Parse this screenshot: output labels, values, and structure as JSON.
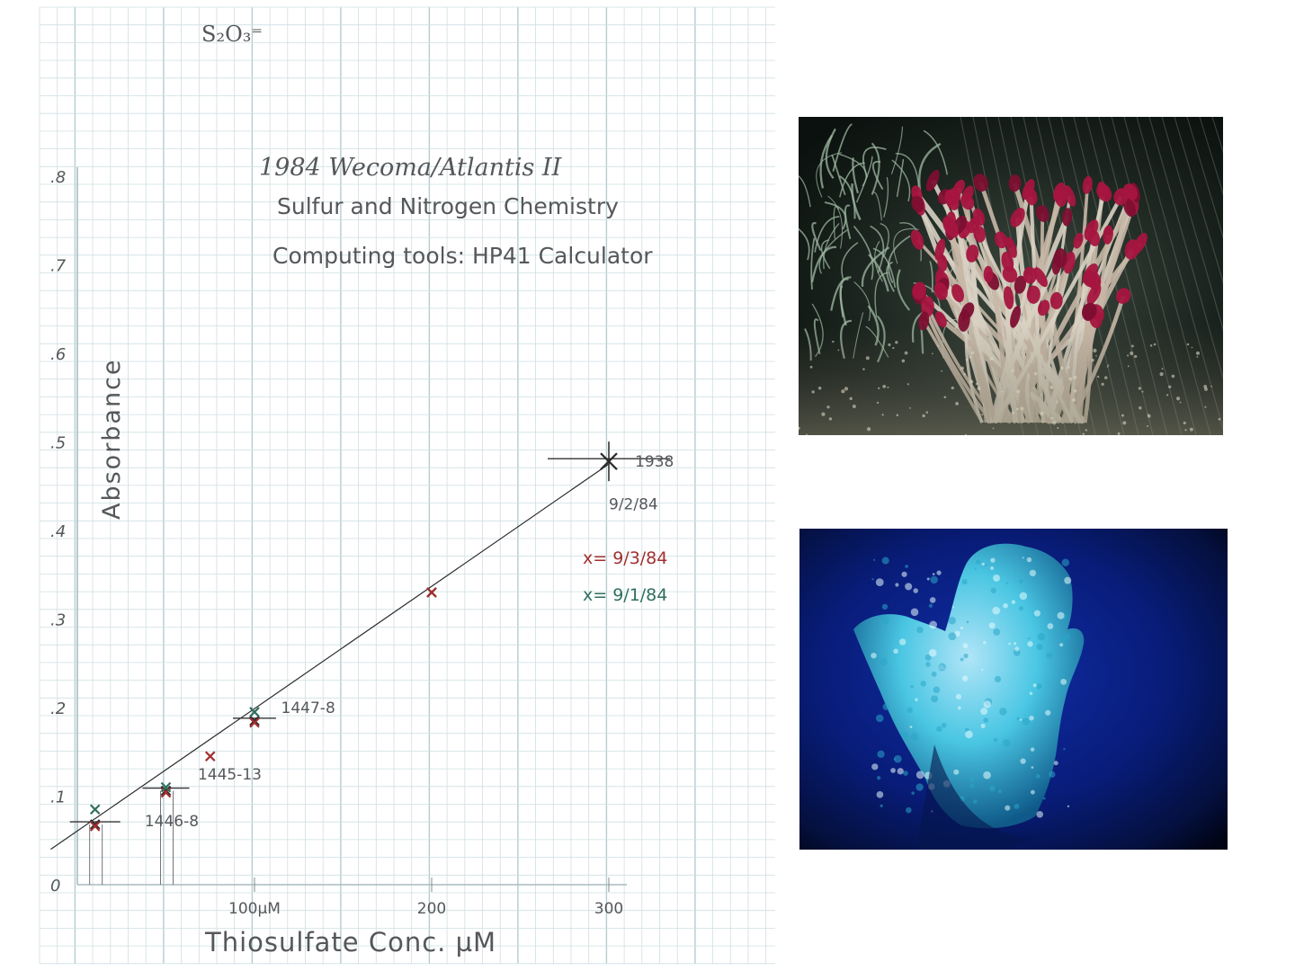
{
  "chart_data": {
    "type": "scatter",
    "header_formula": "S₂O₃⁼",
    "title_lines": [
      "1984 Wecoma/Atlantis II",
      "Sulfur and Nitrogen Chemistry",
      "Computing tools: HP41 Calculator"
    ],
    "ylabel": "Absorbance",
    "xlabel": "Thiosulfate Conc. µM",
    "ylim": [
      0,
      0.8
    ],
    "xlim": [
      0,
      300
    ],
    "yticks": [
      {
        "value": 0,
        "label": "0"
      },
      {
        "value": 0.1,
        "label": ".1"
      },
      {
        "value": 0.2,
        "label": ".2"
      },
      {
        "value": 0.3,
        "label": ".3"
      },
      {
        "value": 0.4,
        "label": ".4"
      },
      {
        "value": 0.5,
        "label": ".5"
      },
      {
        "value": 0.6,
        "label": ".6"
      },
      {
        "value": 0.7,
        "label": ".7"
      },
      {
        "value": 0.8,
        "label": ".8"
      }
    ],
    "xticks": [
      {
        "value": 100,
        "label": "100µM"
      },
      {
        "value": 200,
        "label": "200"
      },
      {
        "value": 300,
        "label": "300"
      }
    ],
    "fit_line": {
      "x": [
        -15,
        300
      ],
      "y": [
        0.04,
        0.475
      ]
    },
    "series": [
      {
        "name": "9/2/84",
        "color": "#2a2a2a",
        "points": [
          {
            "x": 10,
            "y": 0.068
          },
          {
            "x": 50,
            "y": 0.106
          },
          {
            "x": 100,
            "y": 0.185
          },
          {
            "x": 200,
            "y": 0.33
          },
          {
            "x": 300,
            "y": 0.478
          }
        ]
      },
      {
        "name": "9/3/84",
        "color": "#a23030",
        "points": [
          {
            "x": 10,
            "y": 0.066
          },
          {
            "x": 50,
            "y": 0.104
          },
          {
            "x": 75,
            "y": 0.145
          },
          {
            "x": 100,
            "y": 0.183
          },
          {
            "x": 200,
            "y": 0.33
          }
        ]
      },
      {
        "name": "9/1/84",
        "color": "#2f6f5e",
        "points": [
          {
            "x": 10,
            "y": 0.085
          },
          {
            "x": 50,
            "y": 0.11
          },
          {
            "x": 100,
            "y": 0.195
          }
        ]
      }
    ],
    "legend": [
      {
        "marker": "x",
        "label": "9/3/84",
        "color": "#a23030"
      },
      {
        "marker": "x",
        "label": "9/1/84",
        "color": "#2f6f5e"
      }
    ],
    "annotations": [
      {
        "text": "9/2/84",
        "x": 300,
        "y": 0.43
      },
      {
        "text": "1938",
        "x": 330,
        "y": 0.478
      },
      {
        "text": "1447-8",
        "x": 115,
        "y": 0.2
      },
      {
        "text": "1445-13",
        "x": 68,
        "y": 0.125
      },
      {
        "text": "1446-8",
        "x": 38,
        "y": 0.072
      }
    ]
  },
  "photos": [
    {
      "id": "tubeworms",
      "kind": "photograph",
      "subject": "hydrothermal-vent tubeworm colony"
    },
    {
      "id": "chimney",
      "kind": "photograph",
      "subject": "hydrothermal-vent chimney"
    }
  ]
}
